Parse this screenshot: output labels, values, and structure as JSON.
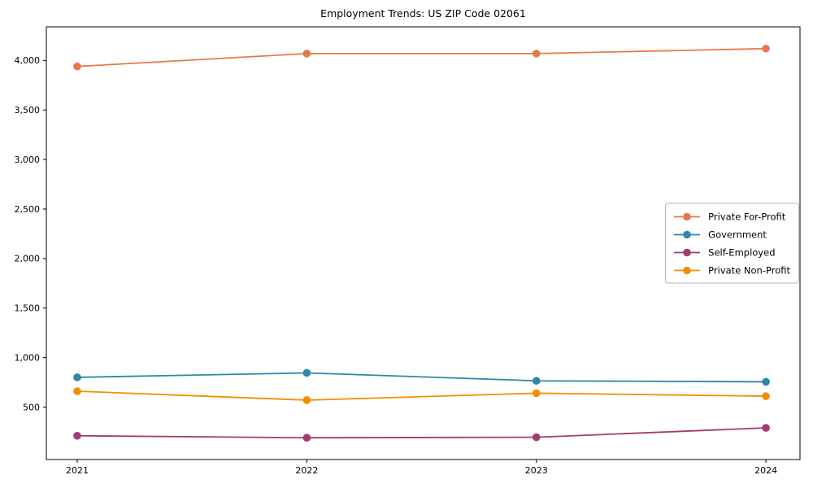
{
  "chart_data": {
    "type": "line",
    "title": "Employment Trends: US ZIP Code 02061",
    "categories": [
      "2021",
      "2022",
      "2023",
      "2024"
    ],
    "series": [
      {
        "name": "Private For-Profit",
        "color": "#E8784B",
        "values": [
          3940,
          4070,
          4070,
          4120
        ]
      },
      {
        "name": "Government",
        "color": "#2E86AB",
        "values": [
          800,
          845,
          765,
          755
        ]
      },
      {
        "name": "Self-Employed",
        "color": "#A23B72",
        "values": [
          210,
          190,
          195,
          290
        ]
      },
      {
        "name": "Private Non-Profit",
        "color": "#F18F01",
        "values": [
          660,
          570,
          640,
          610
        ]
      }
    ],
    "xlabel": "",
    "ylabel": "",
    "ylim": [
      -30,
      4340
    ],
    "yticks": [
      {
        "value": 500,
        "label": "500"
      },
      {
        "value": 1000,
        "label": "1,000"
      },
      {
        "value": 1500,
        "label": "1,500"
      },
      {
        "value": 2000,
        "label": "2,000"
      },
      {
        "value": 2500,
        "label": "2,500"
      },
      {
        "value": 3000,
        "label": "3,000"
      },
      {
        "value": 3500,
        "label": "3,500"
      },
      {
        "value": 4000,
        "label": "4,000"
      }
    ],
    "grid": false,
    "marker": "circle",
    "line_width": 1.8,
    "marker_radius": 4.8,
    "axis_color": "#000000",
    "background": "#ffffff",
    "legend": {
      "position": "center right"
    }
  }
}
